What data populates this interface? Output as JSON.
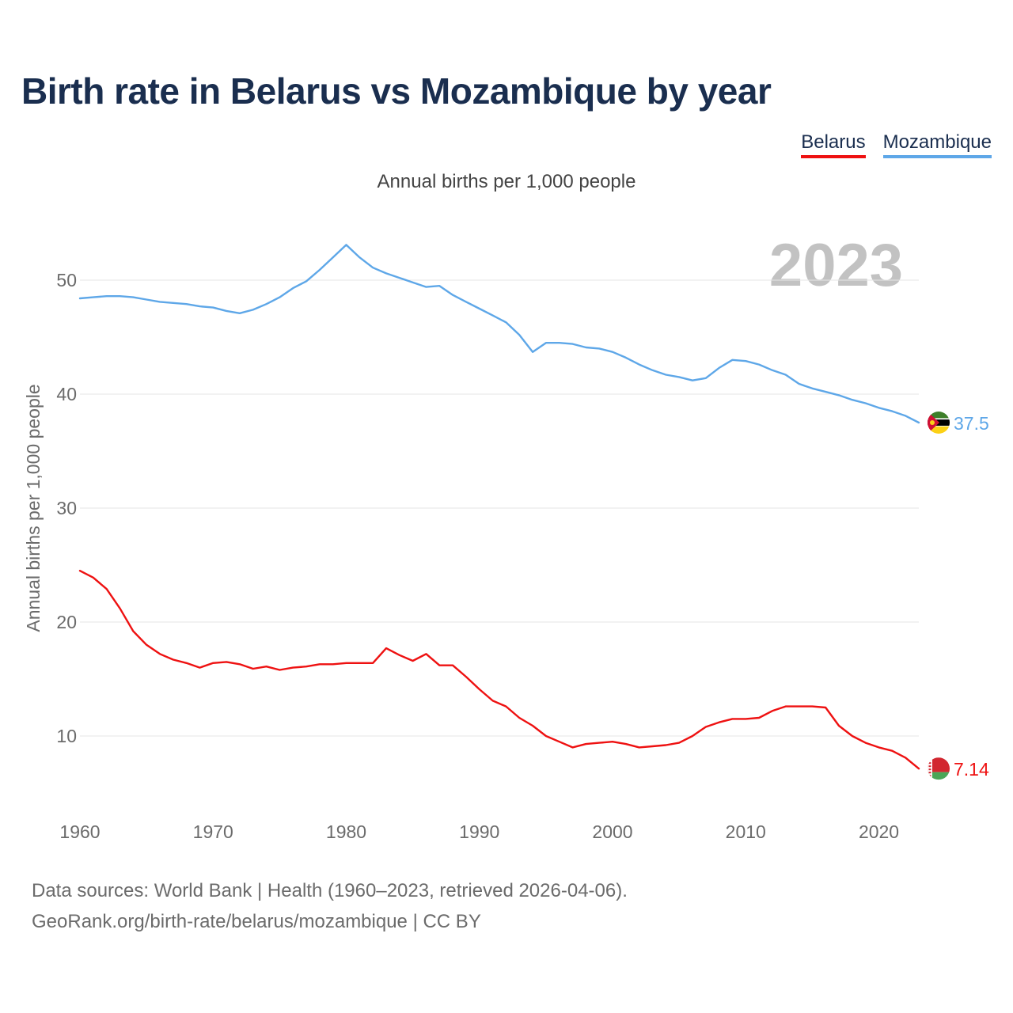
{
  "title": "Birth rate in Belarus vs Mozambique by year",
  "subtitle": "Annual births per 1,000 people",
  "year_watermark": "2023",
  "source_line1": "Data sources: World Bank | Health (1960–2023, retrieved 2026-04-06).",
  "source_line2": "GeoRank.org/birth-rate/belarus/mozambique | CC BY",
  "legend": [
    {
      "name": "Belarus",
      "color": "#ee1111"
    },
    {
      "name": "Mozambique",
      "color": "#5ea7e8"
    }
  ],
  "chart_data": {
    "type": "line",
    "title": "Birth rate in Belarus vs Mozambique by year",
    "xlabel": "",
    "ylabel": "Annual births per 1,000 people",
    "xlim": [
      1960,
      2023
    ],
    "ylim": [
      5,
      55
    ],
    "xticks": [
      1960,
      1970,
      1980,
      1990,
      2000,
      2010,
      2020
    ],
    "yticks": [
      10,
      20,
      30,
      40,
      50
    ],
    "grid": true,
    "x": [
      1960,
      1961,
      1962,
      1963,
      1964,
      1965,
      1966,
      1967,
      1968,
      1969,
      1970,
      1971,
      1972,
      1973,
      1974,
      1975,
      1976,
      1977,
      1978,
      1979,
      1980,
      1981,
      1982,
      1983,
      1984,
      1985,
      1986,
      1987,
      1988,
      1989,
      1990,
      1991,
      1992,
      1993,
      1994,
      1995,
      1996,
      1997,
      1998,
      1999,
      2000,
      2001,
      2002,
      2003,
      2004,
      2005,
      2006,
      2007,
      2008,
      2009,
      2010,
      2011,
      2012,
      2013,
      2014,
      2015,
      2016,
      2017,
      2018,
      2019,
      2020,
      2021,
      2022,
      2023
    ],
    "series": [
      {
        "name": "Belarus",
        "color": "#ee1111",
        "end_label": "7.14",
        "values": [
          24.5,
          23.9,
          22.9,
          21.2,
          19.2,
          18.0,
          17.2,
          16.7,
          16.4,
          16.0,
          16.4,
          16.5,
          16.3,
          15.9,
          16.1,
          15.8,
          16.0,
          16.1,
          16.3,
          16.3,
          16.4,
          16.4,
          16.4,
          17.7,
          17.1,
          16.6,
          17.2,
          16.2,
          16.2,
          15.2,
          14.1,
          13.1,
          12.6,
          11.6,
          10.9,
          10.0,
          9.5,
          9.0,
          9.3,
          9.4,
          9.5,
          9.3,
          9.0,
          9.1,
          9.2,
          9.4,
          10.0,
          10.8,
          11.2,
          11.5,
          11.5,
          11.6,
          12.2,
          12.6,
          12.6,
          12.6,
          12.5,
          10.9,
          10.0,
          9.4,
          9.0,
          8.7,
          8.1,
          7.14
        ]
      },
      {
        "name": "Mozambique",
        "color": "#5ea7e8",
        "end_label": "37.5",
        "values": [
          48.4,
          48.5,
          48.6,
          48.6,
          48.5,
          48.3,
          48.1,
          48.0,
          47.9,
          47.7,
          47.6,
          47.3,
          47.1,
          47.4,
          47.9,
          48.5,
          49.3,
          49.9,
          50.9,
          52.0,
          53.1,
          52.0,
          51.1,
          50.6,
          50.2,
          49.8,
          49.4,
          49.5,
          48.7,
          48.1,
          47.5,
          46.9,
          46.3,
          45.2,
          43.7,
          44.5,
          44.5,
          44.4,
          44.1,
          44.0,
          43.7,
          43.2,
          42.6,
          42.1,
          41.7,
          41.5,
          41.2,
          41.4,
          42.3,
          43.0,
          42.9,
          42.6,
          42.1,
          41.7,
          40.9,
          40.5,
          40.2,
          39.9,
          39.5,
          39.2,
          38.8,
          38.5,
          38.1,
          37.5
        ]
      }
    ]
  }
}
